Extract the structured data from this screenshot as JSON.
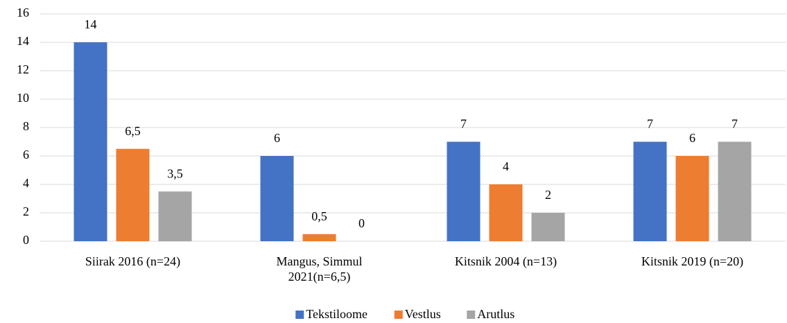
{
  "chart_data": {
    "type": "bar",
    "categories": [
      "Siirak 2016 (n=24)",
      "Mangus, Simmul 2021(n=6,5)",
      "Kitsnik 2004 (n=13)",
      "Kitsnik 2019 (n=20)"
    ],
    "series": [
      {
        "name": "Tekstiloome",
        "color": "#4472c4",
        "values": [
          14,
          6,
          7,
          7
        ],
        "value_labels": [
          "14",
          "6",
          "7",
          "7"
        ]
      },
      {
        "name": "Vestlus",
        "color": "#ed7d31",
        "values": [
          6.5,
          0.5,
          4,
          6
        ],
        "value_labels": [
          "6,5",
          "0,5",
          "4",
          "6"
        ]
      },
      {
        "name": "Arutlus",
        "color": "#a5a5a5",
        "values": [
          3.5,
          0,
          2,
          7
        ],
        "value_labels": [
          "3,5",
          "0",
          "2",
          "7"
        ]
      }
    ],
    "ylim": [
      0,
      16
    ],
    "yticks": [
      0,
      2,
      4,
      6,
      8,
      10,
      12,
      14,
      16
    ],
    "grid": true,
    "legend": "bottom"
  }
}
